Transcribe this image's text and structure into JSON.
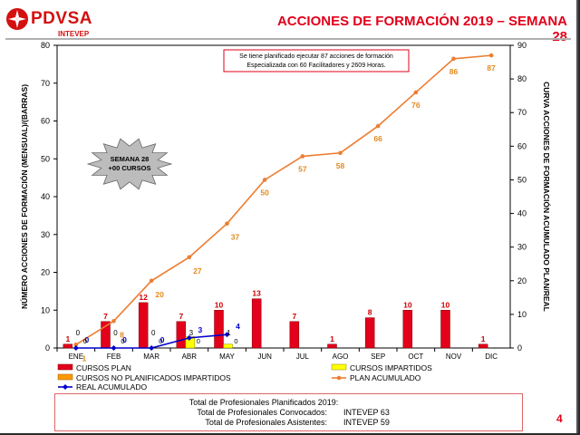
{
  "header": {
    "logo_text": "PDVSA",
    "logo_sub": "INTEVEP",
    "title": "ACCIONES DE FORMACIÓN 2019 – SEMANA 28",
    "page_number": "4"
  },
  "colors": {
    "plan_bar": "#e2001a",
    "imparted_bar": "#ffff00",
    "no_plan_bar": "#ff9900",
    "plan_line": "#ed7d31",
    "real_line": "#0000cc",
    "label_red": "#cc0000",
    "label_orange": "#e08a1e"
  },
  "chart_data": {
    "type": "bar-line-combo",
    "categories": [
      "ENE",
      "FEB",
      "MAR",
      "ABR",
      "MAY",
      "JUN",
      "JUL",
      "AGO",
      "SEP",
      "OCT",
      "NOV",
      "DIC"
    ],
    "y_left": {
      "label": "NÚMERO ACCIONES DE FORMACIÓN (MENSUAL)/(BARRAS)",
      "range": [
        0,
        80
      ],
      "ticks": [
        0,
        10,
        20,
        30,
        40,
        50,
        60,
        70,
        80
      ]
    },
    "y_right": {
      "label": "CURVA ACCIONES DE FORMACIÓN ACUMULADO PLAN/REAL",
      "range": [
        0,
        90
      ],
      "ticks": [
        0,
        10,
        20,
        30,
        40,
        50,
        60,
        70,
        80,
        90
      ]
    },
    "series": [
      {
        "name": "CURSOS PLAN",
        "type": "bar",
        "axis": "left",
        "values": [
          1,
          7,
          12,
          7,
          10,
          13,
          7,
          1,
          8,
          10,
          10,
          1
        ]
      },
      {
        "name": "CURSOS IMPARTIDOS",
        "type": "bar",
        "axis": "left",
        "values": [
          0,
          0,
          0,
          3,
          1,
          null,
          null,
          null,
          null,
          null,
          null,
          null
        ]
      },
      {
        "name": "CURSOS NO PLANIFICADOS IMPARTIDOS",
        "type": "bar",
        "axis": "left",
        "values": [
          0,
          0,
          0,
          0,
          0,
          null,
          null,
          null,
          null,
          null,
          null,
          null
        ]
      },
      {
        "name": "PLAN ACUMULADO",
        "type": "line",
        "axis": "right",
        "values": [
          1,
          8,
          20,
          27,
          37,
          50,
          57,
          58,
          66,
          76,
          86,
          87
        ]
      },
      {
        "name": "REAL ACUMULADO",
        "type": "line",
        "axis": "right",
        "values": [
          0,
          0,
          0,
          3,
          4,
          null,
          null,
          null,
          null,
          null,
          null,
          null
        ]
      }
    ],
    "extra_labels": [
      {
        "category": "ABR",
        "text": "3"
      },
      {
        "category": "ABR",
        "text": "0"
      },
      {
        "category": "MAR",
        "text": "0"
      }
    ],
    "annotation_box": {
      "line1": "Se tiene planificado ejecutar 87 acciones de formación",
      "line2": "Especializada con 60 Facilitadores y 2609 Horas."
    },
    "starburst": {
      "line1": "SEMANA 28",
      "line2": "+00 CURSOS"
    }
  },
  "legend": {
    "plan_bars": "CURSOS PLAN",
    "imparted_bars": "CURSOS IMPARTIDOS",
    "no_plan_bars": "CURSOS NO PLANIFICADOS IMPARTIDOS",
    "plan_line": "PLAN ACUMULADO",
    "real_line": "REAL ACUMULADO"
  },
  "summary": {
    "total_plan_label": "Total de Profesionales Planificados 2019:",
    "convocados_label": "Total de Profesionales Convocados:",
    "convocados_value": "INTEVEP 63",
    "asistentes_label": "Total de Profesionales Asistentes:",
    "asistentes_value": "INTEVEP 59"
  }
}
